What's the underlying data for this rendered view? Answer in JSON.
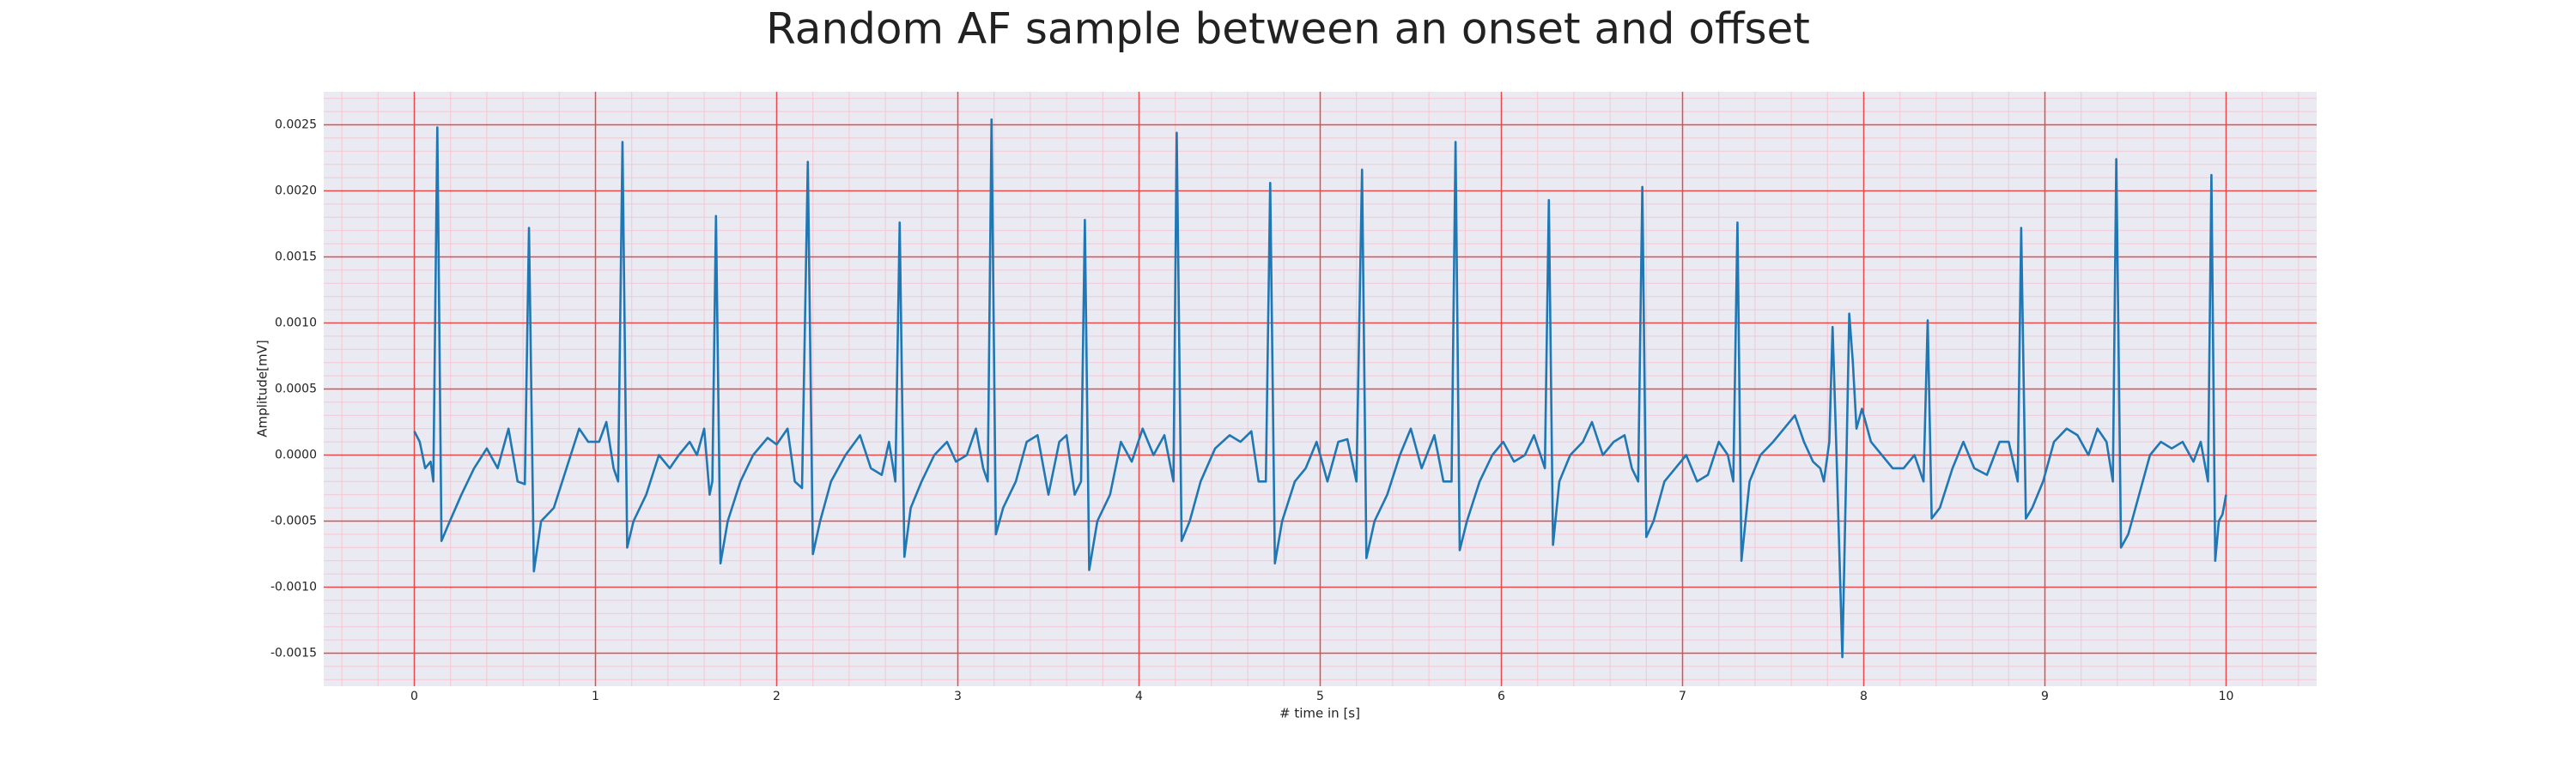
{
  "chart_data": {
    "type": "line",
    "title": "Random AF sample between an onset and offset",
    "xlabel": "# time in [s]",
    "ylabel": "Amplitude[mV]",
    "color": "#1f77b4",
    "background": "#eaeaf2",
    "grid": true,
    "grid_color": "#e84a4a",
    "minor_grid": true,
    "minor_grid_color": "#f5c6d2",
    "xlim": [
      -0.5,
      10.5
    ],
    "xticks": [
      0,
      1,
      2,
      3,
      4,
      5,
      6,
      7,
      8,
      9,
      10
    ],
    "ylim": [
      -0.00175,
      0.00275
    ],
    "yticks": [
      {
        "value": -0.0015,
        "label": "-0.0015"
      },
      {
        "value": -0.001,
        "label": "-0.0010"
      },
      {
        "value": -0.0005,
        "label": "-0.0005"
      },
      {
        "value": 0,
        "label": "0.0000"
      },
      {
        "value": 0.0005,
        "label": "0.0005"
      },
      {
        "value": 0.001,
        "label": "0.0010"
      },
      {
        "value": 0.0015,
        "label": "0.0015"
      },
      {
        "value": 0.002,
        "label": "0.0020"
      },
      {
        "value": 0.0025,
        "label": "0.0025"
      }
    ],
    "x": [
      0.0,
      0.03,
      0.06,
      0.09,
      0.105,
      0.127,
      0.15,
      0.19,
      0.26,
      0.33,
      0.4,
      0.46,
      0.52,
      0.57,
      0.61,
      0.633,
      0.66,
      0.7,
      0.77,
      0.84,
      0.91,
      0.96,
      1.02,
      1.06,
      1.1,
      1.125,
      1.149,
      1.175,
      1.21,
      1.28,
      1.35,
      1.41,
      1.46,
      1.52,
      1.56,
      1.6,
      1.63,
      1.645,
      1.665,
      1.69,
      1.73,
      1.8,
      1.87,
      1.95,
      2.0,
      2.06,
      2.1,
      2.14,
      2.172,
      2.2,
      2.24,
      2.3,
      2.38,
      2.46,
      2.52,
      2.58,
      2.62,
      2.655,
      2.679,
      2.705,
      2.74,
      2.8,
      2.87,
      2.94,
      2.99,
      3.05,
      3.1,
      3.14,
      3.165,
      3.186,
      3.21,
      3.25,
      3.32,
      3.38,
      3.44,
      3.5,
      3.56,
      3.6,
      3.645,
      3.68,
      3.701,
      3.725,
      3.77,
      3.84,
      3.9,
      3.96,
      4.02,
      4.08,
      4.14,
      4.19,
      4.208,
      4.235,
      4.28,
      4.34,
      4.42,
      4.5,
      4.56,
      4.62,
      4.66,
      4.7,
      4.724,
      4.75,
      4.79,
      4.86,
      4.92,
      4.98,
      5.04,
      5.1,
      5.15,
      5.2,
      5.231,
      5.255,
      5.3,
      5.37,
      5.44,
      5.5,
      5.56,
      5.63,
      5.68,
      5.725,
      5.747,
      5.77,
      5.81,
      5.88,
      5.95,
      6.01,
      6.07,
      6.13,
      6.18,
      6.24,
      6.262,
      6.285,
      6.32,
      6.38,
      6.45,
      6.5,
      6.56,
      6.62,
      6.68,
      6.72,
      6.755,
      6.778,
      6.8,
      6.84,
      6.9,
      6.96,
      7.02,
      7.08,
      7.14,
      7.2,
      7.25,
      7.28,
      7.303,
      7.325,
      7.37,
      7.43,
      7.5,
      7.56,
      7.62,
      7.67,
      7.72,
      7.76,
      7.78,
      7.81,
      7.828,
      7.85,
      7.882,
      7.905,
      7.92,
      7.94,
      7.96,
      7.99,
      8.04,
      8.1,
      8.16,
      8.22,
      8.28,
      8.33,
      8.353,
      8.375,
      8.42,
      8.49,
      8.55,
      8.61,
      8.68,
      8.75,
      8.8,
      8.85,
      8.869,
      8.895,
      8.93,
      8.99,
      9.05,
      9.12,
      9.18,
      9.24,
      9.29,
      9.34,
      9.375,
      9.394,
      9.42,
      9.46,
      9.52,
      9.58,
      9.64,
      9.7,
      9.76,
      9.82,
      9.86,
      9.9,
      9.919,
      9.94,
      9.96,
      9.98,
      10.0
    ],
    "values": [
      0.00018,
      0.0001,
      -0.0001,
      -5e-05,
      -0.0002,
      0.00248,
      -0.00065,
      -0.00052,
      -0.0003,
      -0.0001,
      5e-05,
      -0.0001,
      0.0002,
      -0.0002,
      -0.00022,
      0.00172,
      -0.00088,
      -0.0005,
      -0.0004,
      -0.0001,
      0.0002,
      0.0001,
      0.0001,
      0.00025,
      -0.0001,
      -0.0002,
      0.00237,
      -0.0007,
      -0.0005,
      -0.0003,
      0.0,
      -0.0001,
      0.0,
      0.0001,
      0.0,
      0.0002,
      -0.0003,
      -0.0002,
      0.00181,
      -0.00082,
      -0.0005,
      -0.0002,
      0.0,
      0.00013,
      8e-05,
      0.0002,
      -0.0002,
      -0.00025,
      0.00222,
      -0.00075,
      -0.0005,
      -0.0002,
      0.0,
      0.00015,
      -0.0001,
      -0.00015,
      0.0001,
      -0.0002,
      0.00176,
      -0.00077,
      -0.0004,
      -0.0002,
      0.0,
      0.0001,
      -5e-05,
      0.0,
      0.0002,
      -0.0001,
      -0.0002,
      0.00254,
      -0.0006,
      -0.0004,
      -0.0002,
      0.0001,
      0.00015,
      -0.0003,
      0.0001,
      0.00015,
      -0.0003,
      -0.0002,
      0.00178,
      -0.00087,
      -0.0005,
      -0.0003,
      0.0001,
      -5e-05,
      0.0002,
      0.0,
      0.00015,
      -0.0002,
      0.00244,
      -0.00065,
      -0.0005,
      -0.0002,
      5e-05,
      0.00015,
      0.0001,
      0.00018,
      -0.0002,
      -0.0002,
      0.00206,
      -0.00082,
      -0.0005,
      -0.0002,
      -0.0001,
      0.0001,
      -0.0002,
      0.0001,
      0.00012,
      -0.0002,
      0.00216,
      -0.00078,
      -0.0005,
      -0.0003,
      0.0,
      0.0002,
      -0.0001,
      0.00015,
      -0.0002,
      -0.0002,
      0.00237,
      -0.00072,
      -0.0005,
      -0.0002,
      0.0,
      0.0001,
      -5e-05,
      0.0,
      0.00015,
      -0.0001,
      0.00193,
      -0.00068,
      -0.0002,
      0.0,
      0.0001,
      0.00025,
      0.0,
      0.0001,
      0.00015,
      -0.0001,
      -0.0002,
      0.00203,
      -0.00062,
      -0.0005,
      -0.0002,
      -0.0001,
      0.0,
      -0.0002,
      -0.00015,
      0.0001,
      0.0,
      -0.0002,
      0.00176,
      -0.0008,
      -0.0002,
      0.0,
      0.0001,
      0.0002,
      0.0003,
      0.0001,
      -5e-05,
      -0.0001,
      -0.0002,
      0.0001,
      0.00097,
      0.0,
      -0.00153,
      0.0,
      0.00107,
      0.0007,
      0.0002,
      0.00035,
      0.0001,
      0.0,
      -0.0001,
      -0.0001,
      0.0,
      -0.0002,
      0.00102,
      -0.00048,
      -0.0004,
      -0.0001,
      0.0001,
      -0.0001,
      -0.00015,
      0.0001,
      0.0001,
      -0.0002,
      0.00172,
      -0.00048,
      -0.0004,
      -0.0002,
      0.0001,
      0.0002,
      0.00015,
      0.0,
      0.0002,
      0.0001,
      -0.0002,
      0.00224,
      -0.0007,
      -0.0006,
      -0.0003,
      0.0,
      0.0001,
      5e-05,
      0.0001,
      -5e-05,
      0.0001,
      -0.0002,
      0.00212,
      -0.0008,
      -0.0005,
      -0.00045,
      -0.0003
    ]
  }
}
